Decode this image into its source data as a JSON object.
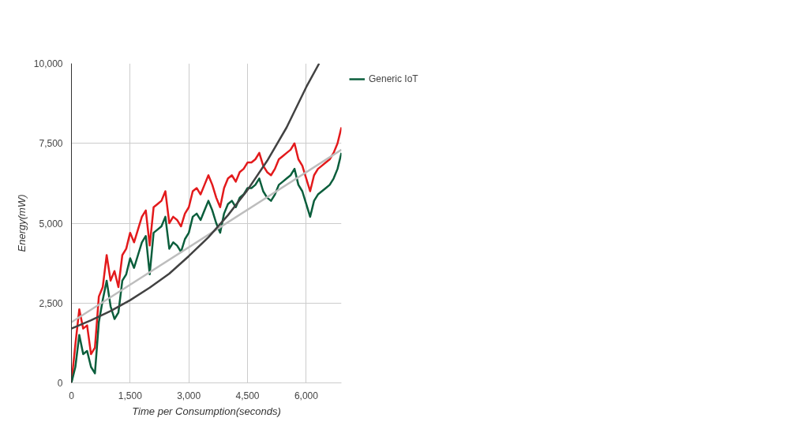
{
  "chart_data": {
    "type": "line",
    "xlabel": "Time per Consumption(seconds)",
    "ylabel": "Energy(mW)",
    "x": [
      0,
      100,
      200,
      300,
      400,
      500,
      600,
      700,
      800,
      900,
      1000,
      1100,
      1200,
      1300,
      1400,
      1500,
      1600,
      1700,
      1800,
      1900,
      2000,
      2100,
      2200,
      2300,
      2400,
      2500,
      2600,
      2700,
      2800,
      2900,
      3000,
      3100,
      3200,
      3300,
      3400,
      3500,
      3600,
      3700,
      3800,
      3900,
      4000,
      4100,
      4200,
      4300,
      4400,
      4500,
      4600,
      4700,
      4800,
      4900,
      5000,
      5100,
      5200,
      5300,
      5400,
      5500,
      5600,
      5700,
      5800,
      5900,
      6000,
      6100,
      6200,
      6300,
      6400,
      6500,
      6600,
      6700,
      6800,
      6900
    ],
    "series": [
      {
        "color": "#e31a1c",
        "values": [
          0,
          1200,
          2300,
          1700,
          1800,
          900,
          1100,
          2700,
          3000,
          4000,
          3200,
          3500,
          3000,
          4000,
          4200,
          4700,
          4400,
          4800,
          5200,
          5400,
          4300,
          5500,
          5600,
          5700,
          6000,
          5000,
          5200,
          5100,
          4900,
          5300,
          5500,
          6000,
          6100,
          5900,
          6200,
          6500,
          6200,
          5800,
          5500,
          6100,
          6400,
          6500,
          6300,
          6600,
          6700,
          6900,
          6900,
          7000,
          7200,
          6800,
          6600,
          6500,
          6700,
          7000,
          7100,
          7200,
          7300,
          7500,
          7000,
          6800,
          6400,
          6000,
          6500,
          6700,
          6800,
          6900,
          7000,
          7200,
          7500,
          8000
        ]
      },
      {
        "name": "Generic IoT",
        "color": "#0b5e3c",
        "values": [
          0,
          500,
          1500,
          900,
          1000,
          500,
          300,
          1900,
          2600,
          3200,
          2400,
          2000,
          2200,
          3200,
          3400,
          3900,
          3600,
          4000,
          4400,
          4600,
          3400,
          4700,
          4800,
          4900,
          5200,
          4200,
          4400,
          4300,
          4100,
          4500,
          4700,
          5200,
          5300,
          5100,
          5400,
          5700,
          5400,
          5000,
          4700,
          5300,
          5600,
          5700,
          5500,
          5800,
          5900,
          6100,
          6100,
          6200,
          6400,
          6000,
          5800,
          5700,
          5900,
          6200,
          6300,
          6400,
          6500,
          6700,
          6200,
          6000,
          5600,
          5200,
          5700,
          5900,
          6000,
          6100,
          6200,
          6400,
          6700,
          7200
        ]
      },
      {
        "type": "line",
        "color": "#bdbdbd",
        "x": [
          0,
          6900
        ],
        "values": [
          1900,
          7300
        ]
      },
      {
        "type": "line",
        "color": "#424242",
        "x": [
          0,
          500,
          1000,
          1500,
          2000,
          2500,
          3000,
          3500,
          4000,
          4500,
          5000,
          5500,
          6000,
          6330
        ],
        "values": [
          1700,
          1960,
          2250,
          2590,
          2980,
          3420,
          3970,
          4560,
          5250,
          6040,
          6950,
          8000,
          9260,
          10000
        ]
      }
    ],
    "xlim": [
      0,
      6900
    ],
    "ylim": [
      0,
      10000
    ],
    "xticks": [
      0,
      {
        "value": 1500,
        "label": "1,500"
      },
      {
        "value": 3000,
        "label": "3,000"
      },
      {
        "value": 4500,
        "label": "4,500"
      },
      {
        "value": 6000,
        "label": "6,000"
      }
    ],
    "yticks": [
      0,
      {
        "value": 2500,
        "label": "2,500"
      },
      {
        "value": 5000,
        "label": "5,000"
      },
      {
        "value": 7500,
        "label": "7,500"
      },
      {
        "value": 10000,
        "label": "10,000"
      }
    ],
    "grid": true,
    "legend": "top right",
    "marker": "none",
    "line_style": "solid"
  }
}
